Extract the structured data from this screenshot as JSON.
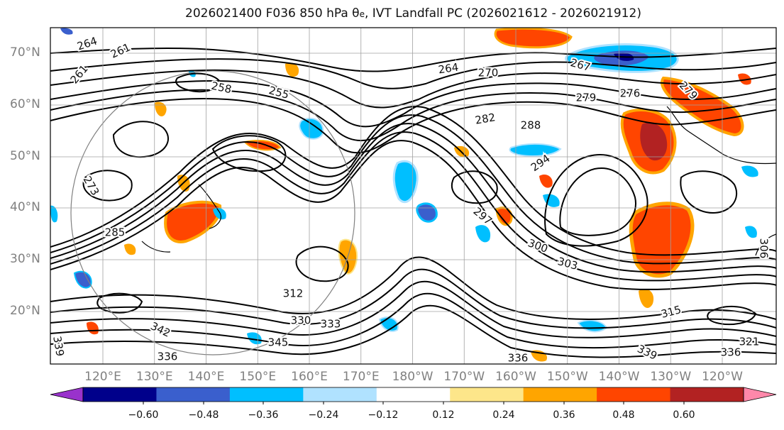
{
  "title": {
    "prefix": "2026021400 F036 850 hPa θ",
    "subscript": "e",
    "suffix": ", IVT Landfall PC (2026021612 - 2026021912)"
  },
  "lat_labels": [
    "70°N",
    "60°N",
    "50°N",
    "40°N",
    "30°N",
    "20°N"
  ],
  "lon_labels": [
    "120°E",
    "130°E",
    "140°E",
    "150°E",
    "160°E",
    "170°E",
    "180°W",
    "170°W",
    "160°W",
    "150°W",
    "140°W",
    "130°W",
    "120°W"
  ],
  "contour_labels": [
    "264",
    "261",
    "261",
    "258",
    "255",
    "264",
    "270",
    "267",
    "279",
    "276",
    "282",
    "288",
    "279",
    "273",
    "294",
    "285",
    "297",
    "300",
    "303",
    "312",
    "330",
    "333",
    "342",
    "345",
    "336",
    "339",
    "336",
    "321",
    "315",
    "339",
    "336",
    "306"
  ],
  "colorbar": {
    "tick_labels": [
      "−0.60",
      "−0.48",
      "−0.36",
      "−0.24",
      "−0.12",
      "0.12",
      "0.24",
      "0.36",
      "0.48",
      "0.60"
    ],
    "colors": [
      "#9932cc",
      "#00008b",
      "#3a5fcd",
      "#00bfff",
      "#b0e2ff",
      "#ffffff",
      "#fde68a",
      "#ffa500",
      "#ff4500",
      "#b22222",
      "#ff88aa"
    ]
  },
  "shading_colors": {
    "neg_strong": "#3a5fcd",
    "neg_mid": "#00bfff",
    "neg_weak": "#b0e2ff",
    "pos_weak": "#fde68a",
    "pos_mid": "#ffa500",
    "pos_strong": "#ff4500",
    "pos_max": "#b22222"
  }
}
